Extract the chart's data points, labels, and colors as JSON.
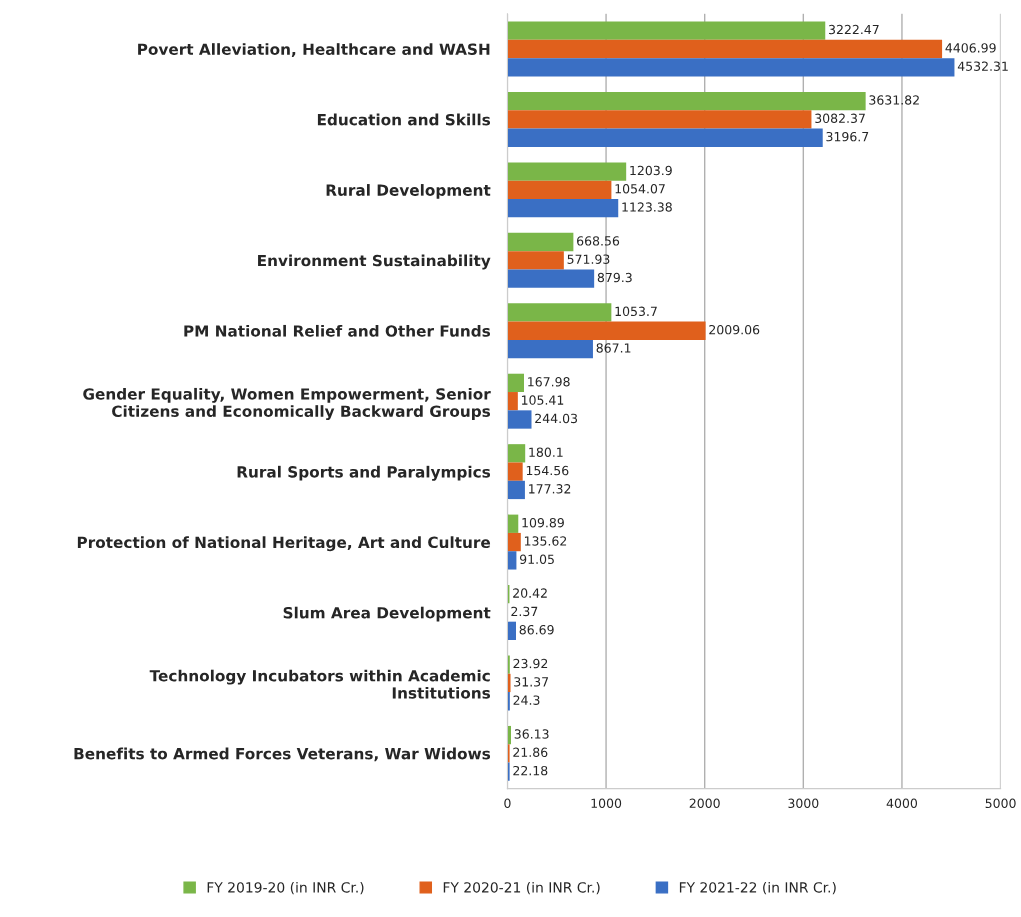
{
  "chart_data": {
    "type": "bar",
    "orientation": "horizontal",
    "categories": [
      "Povert Alleviation, Healthcare and WASH",
      "Education and Skills",
      "Rural Development",
      "Environment Sustainability",
      "PM National Relief and Other Funds",
      "Gender Equality, Women Empowerment, Senior\nCitizens and Economically Backward Groups",
      "Rural Sports and Paralympics",
      "Protection of National Heritage, Art and Culture",
      "Slum Area Development",
      "Technology Incubators within Academic\nInstitutions",
      "Benefits to Armed Forces Veterans, War Widows"
    ],
    "series": [
      {
        "name": "FY 2019-20 (in INR Cr.)",
        "color": "#7ab648",
        "values": [
          3222.47,
          3631.82,
          1203.9,
          668.56,
          1053.7,
          167.98,
          180.1,
          109.89,
          20.42,
          23.92,
          36.13
        ]
      },
      {
        "name": "FY 2020-21 (in INR Cr.)",
        "color": "#e0601c",
        "values": [
          4406.99,
          3082.37,
          1054.07,
          571.93,
          2009.06,
          105.41,
          154.56,
          135.62,
          2.37,
          31.37,
          21.86
        ]
      },
      {
        "name": "FY 2021-22 (in INR Cr.)",
        "color": "#3a6fc4",
        "values": [
          4532.31,
          3196.7,
          1123.38,
          879.3,
          867.1,
          244.03,
          177.32,
          91.05,
          86.69,
          24.3,
          22.18
        ]
      }
    ],
    "xlim": [
      0,
      5000
    ],
    "xticks": [
      0,
      1000,
      2000,
      3000,
      4000,
      5000
    ],
    "grid": "x",
    "legend": "bottom",
    "data_labels": true
  }
}
